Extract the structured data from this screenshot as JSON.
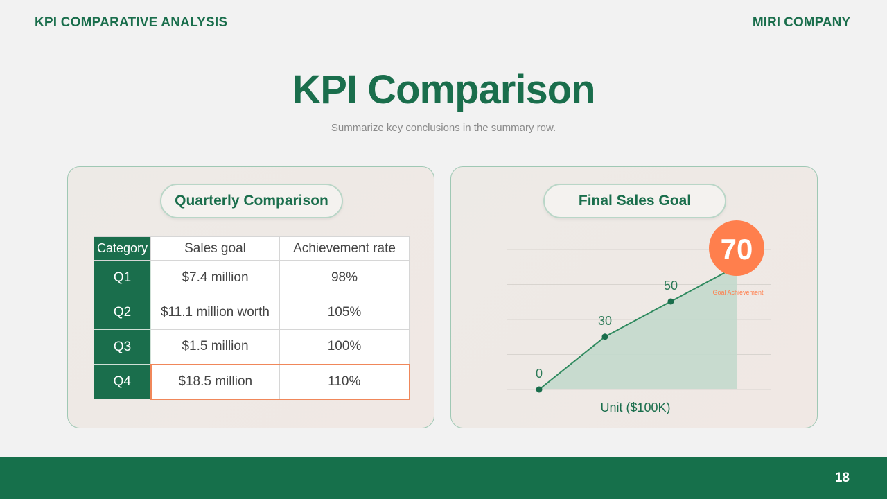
{
  "header": {
    "left": "KPI COMPARATIVE ANALYSIS",
    "right": "MIRI COMPANY"
  },
  "title": "KPI Comparison",
  "subtitle": "Summarize key conclusions in the summary row.",
  "left_card": {
    "heading": "Quarterly Comparison",
    "table": {
      "columns": [
        "Category",
        "Sales goal",
        "Achievement rate"
      ],
      "rows": [
        [
          "Q1",
          "$7.4 million",
          "98%"
        ],
        [
          "Q2",
          "$11.1 million worth",
          "105%"
        ],
        [
          "Q3",
          "$1.5 million",
          "100%"
        ],
        [
          "Q4",
          "$18.5 million",
          "110%"
        ]
      ],
      "highlight_row": 3
    }
  },
  "right_card": {
    "heading": "Final Sales Goal",
    "goal_value": "70",
    "goal_label": "Goal Achievement",
    "unit_label": "Unit ($100K)"
  },
  "chart_data": {
    "type": "area",
    "title": "",
    "xlabel": "Unit ($100K)",
    "ylabel": "",
    "x": [
      0,
      1,
      2,
      3
    ],
    "values": [
      0,
      30,
      50,
      70
    ],
    "point_labels": [
      "0",
      "30",
      "50",
      "70"
    ],
    "ylim": [
      0,
      80
    ],
    "grid": true
  },
  "colors": {
    "primary": "#1a6e4c",
    "accent": "#ff7f4d",
    "area": "#c3d9cc"
  },
  "footer": {
    "page": "18"
  }
}
